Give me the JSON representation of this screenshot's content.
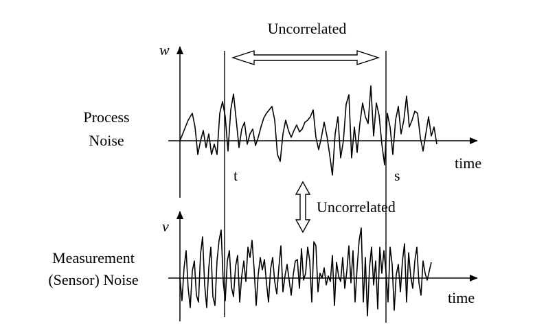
{
  "labels": {
    "top_uncorrelated": "Uncorrelated",
    "mid_uncorrelated": "Uncorrelated",
    "process_line1": "Process",
    "process_line2": "Noise",
    "measurement_line1": "Measurement",
    "measurement_line2": "(Sensor) Noise",
    "w_axis": "w",
    "v_axis": "v",
    "time_top": "time",
    "time_bottom": "time",
    "t_marker": "t",
    "s_marker": "s"
  }
}
